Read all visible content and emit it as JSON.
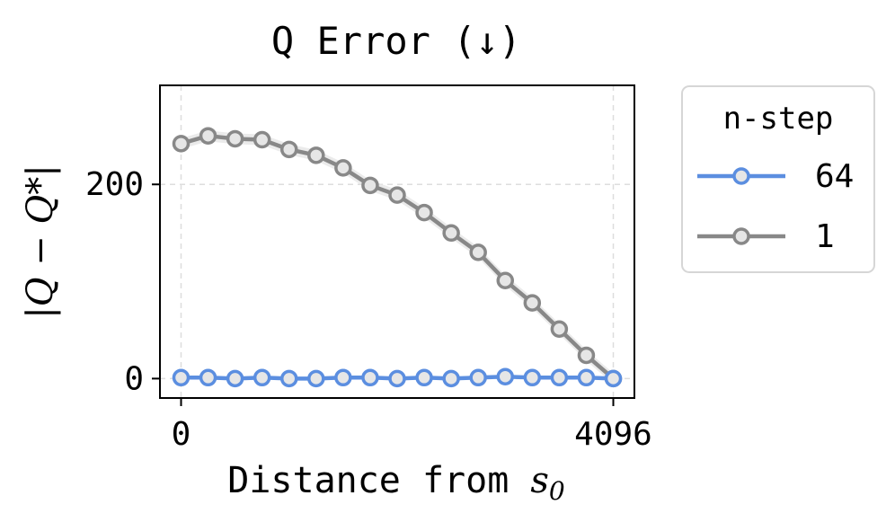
{
  "chart_data": {
    "type": "line",
    "title": "Q Error (↓)",
    "xlabel_text": "Distance from ",
    "xlabel_math": "s",
    "xlabel_sub": "0",
    "ylabel": "|Q − Q*|",
    "xlim": [
      -200,
      4296
    ],
    "ylim": [
      -20,
      302
    ],
    "xticks": [
      0,
      4096
    ],
    "xtick_labels": [
      "0",
      "4096"
    ],
    "yticks": [
      0,
      200
    ],
    "ytick_labels": [
      "0",
      "200"
    ],
    "grid": true,
    "legend": {
      "title": "n-step",
      "placement": "right-outside"
    },
    "x": [
      0,
      256,
      512,
      768,
      1024,
      1280,
      1536,
      1792,
      2048,
      2304,
      2560,
      2816,
      3072,
      3328,
      3584,
      3840,
      4096
    ],
    "series": [
      {
        "name": "64",
        "color": "#5b8ee0",
        "values": [
          1,
          1,
          0,
          1,
          0,
          0,
          1,
          1,
          0,
          1,
          0,
          1,
          2,
          1,
          1,
          1,
          0
        ]
      },
      {
        "name": "1",
        "color": "#888888",
        "values": [
          242,
          250,
          247,
          246,
          236,
          230,
          217,
          199,
          189,
          171,
          150,
          130,
          101,
          78,
          51,
          24,
          0
        ]
      }
    ]
  }
}
